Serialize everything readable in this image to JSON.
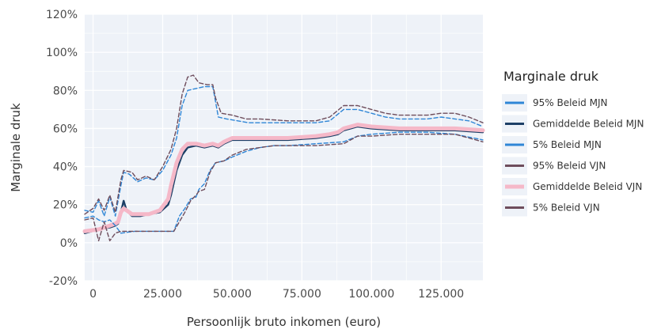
{
  "chart_data": {
    "type": "line",
    "title": "",
    "xlabel": "Persoonlijk bruto inkomen (euro)",
    "ylabel": "Marginale druk",
    "xlim": [
      -3000,
      140000
    ],
    "ylim": [
      -20,
      120
    ],
    "x_ticks": [
      {
        "value": 0,
        "label": "0"
      },
      {
        "value": 25000,
        "label": "25.000"
      },
      {
        "value": 50000,
        "label": "50.000"
      },
      {
        "value": 75000,
        "label": "75.000"
      },
      {
        "value": 100000,
        "label": "100.000"
      },
      {
        "value": 125000,
        "label": "125.000"
      }
    ],
    "y_ticks": [
      {
        "value": -20,
        "label": "-20%"
      },
      {
        "value": 0,
        "label": "0%"
      },
      {
        "value": 20,
        "label": "20%"
      },
      {
        "value": 40,
        "label": "40%"
      },
      {
        "value": 60,
        "label": "60%"
      },
      {
        "value": 80,
        "label": "80%"
      },
      {
        "value": 100,
        "label": "100%"
      },
      {
        "value": 120,
        "label": "120%"
      }
    ],
    "grid": true,
    "background": "#eef2f8",
    "legend": {
      "title": "Marginale druk",
      "position": "right"
    },
    "series": [
      {
        "name": "95% Beleid MJN",
        "color": "#2f86d6",
        "dash": true,
        "width": 1.4,
        "points": [
          [
            -3000,
            17
          ],
          [
            0,
            16
          ],
          [
            2000,
            22
          ],
          [
            4000,
            14
          ],
          [
            6000,
            24
          ],
          [
            8000,
            14
          ],
          [
            10000,
            30
          ],
          [
            11000,
            37
          ],
          [
            13000,
            36
          ],
          [
            16000,
            32
          ],
          [
            19000,
            34
          ],
          [
            22000,
            33
          ],
          [
            25000,
            38
          ],
          [
            28000,
            46
          ],
          [
            30000,
            55
          ],
          [
            32000,
            72
          ],
          [
            34000,
            80
          ],
          [
            37000,
            81
          ],
          [
            40000,
            82
          ],
          [
            43000,
            82
          ],
          [
            45000,
            66
          ],
          [
            48000,
            65
          ],
          [
            52000,
            64
          ],
          [
            56000,
            63
          ],
          [
            60000,
            63
          ],
          [
            65000,
            63
          ],
          [
            70000,
            63
          ],
          [
            75000,
            63
          ],
          [
            80000,
            63
          ],
          [
            85000,
            64
          ],
          [
            90000,
            70
          ],
          [
            95000,
            70
          ],
          [
            100000,
            68
          ],
          [
            105000,
            66
          ],
          [
            110000,
            65
          ],
          [
            115000,
            65
          ],
          [
            120000,
            65
          ],
          [
            125000,
            66
          ],
          [
            130000,
            65
          ],
          [
            135000,
            64
          ],
          [
            140000,
            61
          ]
        ]
      },
      {
        "name": "Gemiddelde Beleid MJN",
        "color": "#1d3f66",
        "dash": false,
        "width": 2.4,
        "points": [
          [
            -3000,
            5
          ],
          [
            2000,
            7
          ],
          [
            6000,
            8
          ],
          [
            8000,
            9
          ],
          [
            9000,
            10
          ],
          [
            10000,
            16
          ],
          [
            11000,
            22
          ],
          [
            12000,
            17
          ],
          [
            14000,
            14
          ],
          [
            17000,
            14
          ],
          [
            20000,
            15
          ],
          [
            24000,
            16
          ],
          [
            27000,
            20
          ],
          [
            28000,
            25
          ],
          [
            30000,
            38
          ],
          [
            32000,
            46
          ],
          [
            34000,
            50
          ],
          [
            37000,
            51
          ],
          [
            40000,
            50
          ],
          [
            43000,
            51
          ],
          [
            45000,
            50
          ],
          [
            47000,
            52
          ],
          [
            50000,
            54
          ],
          [
            55000,
            54
          ],
          [
            60000,
            54
          ],
          [
            70000,
            54
          ],
          [
            80000,
            55
          ],
          [
            85000,
            56
          ],
          [
            88000,
            57
          ],
          [
            90000,
            59
          ],
          [
            95000,
            61
          ],
          [
            100000,
            60
          ],
          [
            110000,
            59
          ],
          [
            120000,
            59
          ],
          [
            130000,
            59
          ],
          [
            140000,
            58
          ]
        ]
      },
      {
        "name": "5% Beleid MJN",
        "color": "#2f86d6",
        "dash": true,
        "width": 1.4,
        "points": [
          [
            -3000,
            13
          ],
          [
            0,
            14
          ],
          [
            2000,
            12
          ],
          [
            4000,
            11
          ],
          [
            6000,
            12
          ],
          [
            8000,
            9
          ],
          [
            10000,
            5
          ],
          [
            15000,
            6
          ],
          [
            20000,
            6
          ],
          [
            25000,
            6
          ],
          [
            29000,
            6
          ],
          [
            31000,
            14
          ],
          [
            33000,
            18
          ],
          [
            35000,
            23
          ],
          [
            37000,
            24
          ],
          [
            38000,
            28
          ],
          [
            40000,
            31
          ],
          [
            42000,
            38
          ],
          [
            44000,
            42
          ],
          [
            47000,
            43
          ],
          [
            50000,
            45
          ],
          [
            55000,
            48
          ],
          [
            60000,
            50
          ],
          [
            65000,
            51
          ],
          [
            70000,
            51
          ],
          [
            80000,
            52
          ],
          [
            90000,
            53
          ],
          [
            95000,
            56
          ],
          [
            100000,
            57
          ],
          [
            110000,
            58
          ],
          [
            120000,
            58
          ],
          [
            130000,
            57
          ],
          [
            140000,
            54
          ]
        ]
      },
      {
        "name": "95% Beleid VJN",
        "color": "#6e4d5c",
        "dash": true,
        "width": 1.4,
        "points": [
          [
            -3000,
            15
          ],
          [
            0,
            18
          ],
          [
            2000,
            23
          ],
          [
            4000,
            17
          ],
          [
            6000,
            25
          ],
          [
            8000,
            16
          ],
          [
            10000,
            33
          ],
          [
            11000,
            38
          ],
          [
            14000,
            37
          ],
          [
            16000,
            33
          ],
          [
            19000,
            35
          ],
          [
            22000,
            33
          ],
          [
            25000,
            40
          ],
          [
            28000,
            49
          ],
          [
            30000,
            60
          ],
          [
            32000,
            78
          ],
          [
            34000,
            87
          ],
          [
            36000,
            88
          ],
          [
            38000,
            84
          ],
          [
            41000,
            83
          ],
          [
            43000,
            83
          ],
          [
            44000,
            76
          ],
          [
            46000,
            68
          ],
          [
            50000,
            67
          ],
          [
            55000,
            65
          ],
          [
            60000,
            65
          ],
          [
            70000,
            64
          ],
          [
            80000,
            64
          ],
          [
            85000,
            66
          ],
          [
            90000,
            72
          ],
          [
            95000,
            72
          ],
          [
            100000,
            70
          ],
          [
            105000,
            68
          ],
          [
            110000,
            67
          ],
          [
            115000,
            67
          ],
          [
            120000,
            67
          ],
          [
            125000,
            68
          ],
          [
            130000,
            68
          ],
          [
            135000,
            66
          ],
          [
            140000,
            63
          ]
        ]
      },
      {
        "name": "Gemiddelde Beleid VJN",
        "color": "#f5b8c8",
        "dash": false,
        "width": 5,
        "points": [
          [
            -3000,
            6
          ],
          [
            2000,
            7
          ],
          [
            6000,
            9
          ],
          [
            8000,
            10
          ],
          [
            9000,
            11
          ],
          [
            10000,
            16
          ],
          [
            11000,
            18
          ],
          [
            12000,
            17
          ],
          [
            14000,
            15
          ],
          [
            17000,
            15
          ],
          [
            20000,
            15
          ],
          [
            24000,
            17
          ],
          [
            27000,
            23
          ],
          [
            28000,
            30
          ],
          [
            30000,
            42
          ],
          [
            32000,
            49
          ],
          [
            34000,
            52
          ],
          [
            37000,
            52
          ],
          [
            40000,
            51
          ],
          [
            43000,
            52
          ],
          [
            45000,
            51
          ],
          [
            47000,
            53
          ],
          [
            50000,
            55
          ],
          [
            55000,
            55
          ],
          [
            60000,
            55
          ],
          [
            70000,
            55
          ],
          [
            80000,
            56
          ],
          [
            85000,
            57
          ],
          [
            88000,
            58
          ],
          [
            90000,
            60
          ],
          [
            95000,
            62
          ],
          [
            100000,
            61
          ],
          [
            110000,
            60
          ],
          [
            120000,
            60
          ],
          [
            130000,
            60
          ],
          [
            140000,
            59
          ]
        ]
      },
      {
        "name": "5% Beleid VJN",
        "color": "#6e4d5c",
        "dash": true,
        "width": 1.4,
        "points": [
          [
            -3000,
            12
          ],
          [
            0,
            13
          ],
          [
            2000,
            1
          ],
          [
            4000,
            11
          ],
          [
            6000,
            1
          ],
          [
            8000,
            5
          ],
          [
            10000,
            6
          ],
          [
            15000,
            6
          ],
          [
            20000,
            6
          ],
          [
            25000,
            6
          ],
          [
            29000,
            6
          ],
          [
            31000,
            11
          ],
          [
            33000,
            16
          ],
          [
            35000,
            22
          ],
          [
            37000,
            25
          ],
          [
            38000,
            27
          ],
          [
            40000,
            28
          ],
          [
            42000,
            37
          ],
          [
            44000,
            42
          ],
          [
            47000,
            43
          ],
          [
            50000,
            46
          ],
          [
            55000,
            49
          ],
          [
            60000,
            50
          ],
          [
            65000,
            51
          ],
          [
            70000,
            51
          ],
          [
            80000,
            51
          ],
          [
            90000,
            52
          ],
          [
            95000,
            56
          ],
          [
            100000,
            56
          ],
          [
            110000,
            57
          ],
          [
            120000,
            57
          ],
          [
            130000,
            57
          ],
          [
            140000,
            53
          ]
        ]
      }
    ]
  }
}
